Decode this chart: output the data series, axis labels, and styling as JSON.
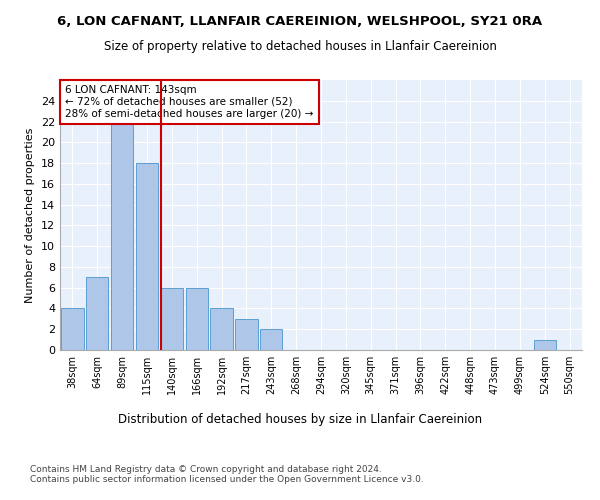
{
  "title1": "6, LON CAFNANT, LLANFAIR CAEREINION, WELSHPOOL, SY21 0RA",
  "title2": "Size of property relative to detached houses in Llanfair Caereinion",
  "xlabel": "Distribution of detached houses by size in Llanfair Caereinion",
  "ylabel": "Number of detached properties",
  "footer": "Contains HM Land Registry data © Crown copyright and database right 2024.\nContains public sector information licensed under the Open Government Licence v3.0.",
  "categories": [
    "38sqm",
    "64sqm",
    "89sqm",
    "115sqm",
    "140sqm",
    "166sqm",
    "192sqm",
    "217sqm",
    "243sqm",
    "268sqm",
    "294sqm",
    "320sqm",
    "345sqm",
    "371sqm",
    "396sqm",
    "422sqm",
    "448sqm",
    "473sqm",
    "499sqm",
    "524sqm",
    "550sqm"
  ],
  "values": [
    4,
    7,
    22,
    18,
    6,
    6,
    4,
    3,
    2,
    0,
    0,
    0,
    0,
    0,
    0,
    0,
    0,
    0,
    0,
    1,
    0
  ],
  "bar_color": "#aec6e8",
  "bar_edge_color": "#5a9fd4",
  "reference_line_x": 3.575,
  "annotation_label": "6 LON CAFNANT: 143sqm",
  "annotation_line1": "← 72% of detached houses are smaller (52)",
  "annotation_line2": "28% of semi-detached houses are larger (20) →",
  "annotation_box_color": "#ffffff",
  "annotation_box_edge_color": "#cc0000",
  "ref_line_color": "#cc0000",
  "ylim": [
    0,
    26
  ],
  "yticks": [
    0,
    2,
    4,
    6,
    8,
    10,
    12,
    14,
    16,
    18,
    20,
    22,
    24
  ],
  "plot_bg_color": "#e8f0fb"
}
